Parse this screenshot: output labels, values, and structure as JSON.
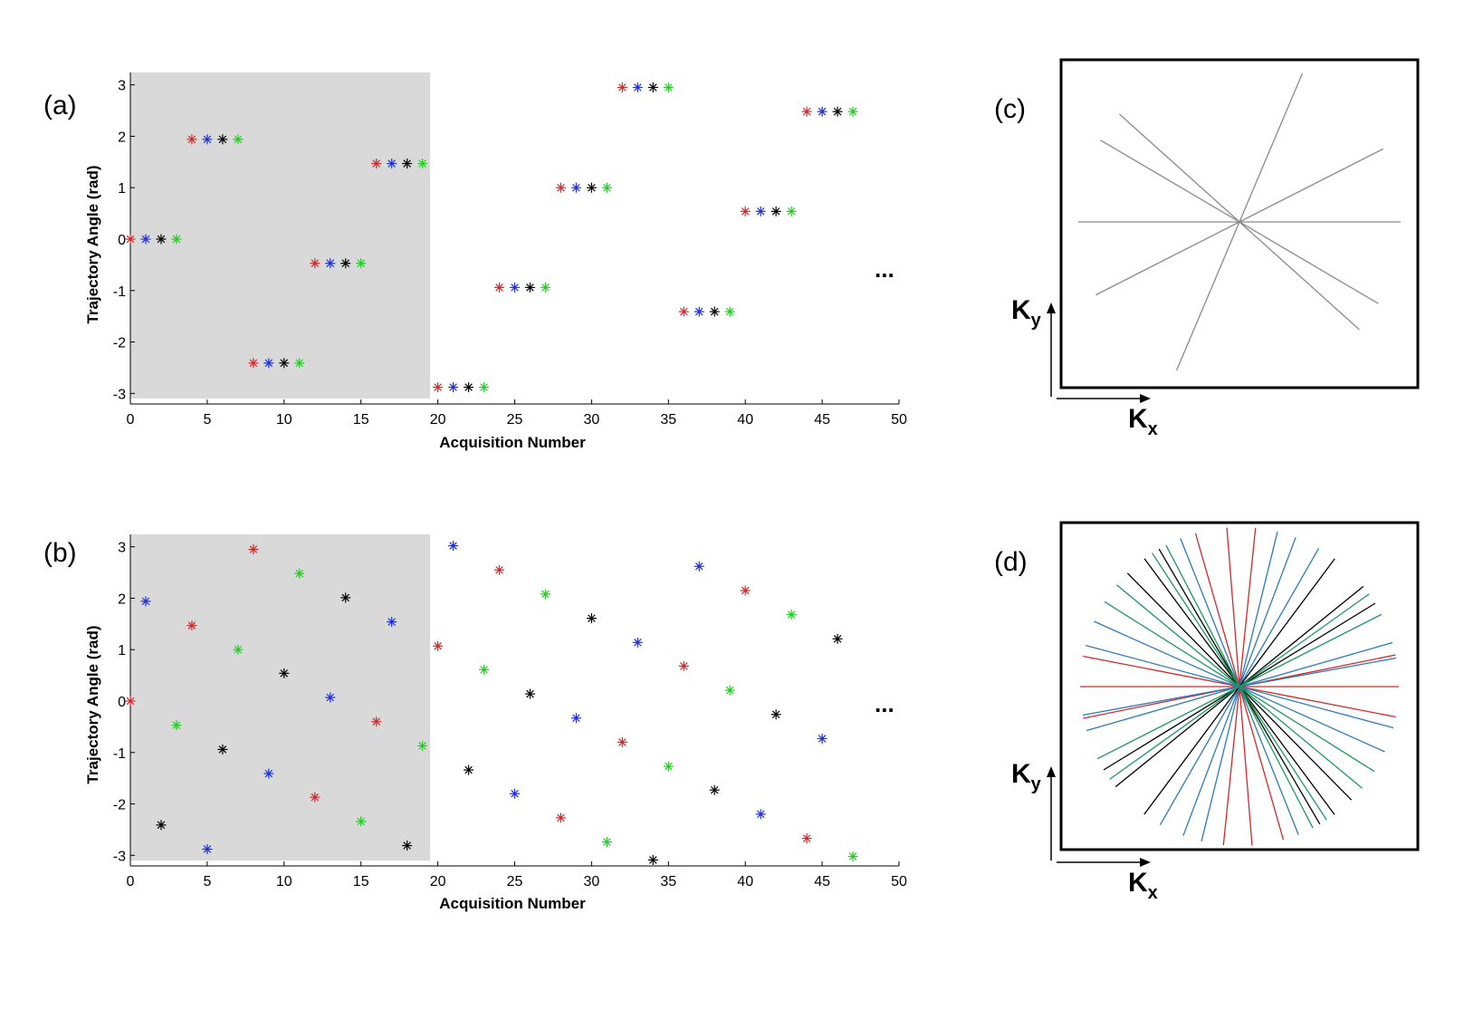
{
  "colors": {
    "red": "#d62728",
    "blue": "#1f2fd8",
    "black": "#000000",
    "green": "#22cc22",
    "shade": "#d9d9d9",
    "teal": "#2b7bba",
    "dgreen": "#1a9a5a",
    "gray": "#8a8a8a"
  },
  "chart_data": [
    {
      "type": "scatter",
      "panel": "(a)",
      "xlabel": "Acquisition Number",
      "ylabel": "Trajectory Angle (rad)",
      "xlim": [
        0,
        50
      ],
      "ylim": [
        -3.1,
        3.1
      ],
      "xticks": [
        0,
        5,
        10,
        15,
        20,
        25,
        30,
        35,
        40,
        45,
        50
      ],
      "yticks": [
        3,
        2,
        1,
        0,
        -1,
        -2,
        -3
      ],
      "shaded_region_x": [
        0,
        19.5
      ],
      "annotation": "...",
      "marker": "asterisk",
      "color_cycle": [
        "red",
        "blue",
        "black",
        "green"
      ],
      "points": [
        [
          0,
          0
        ],
        [
          1,
          0
        ],
        [
          2,
          0
        ],
        [
          3,
          0
        ],
        [
          4,
          1.94
        ],
        [
          5,
          1.94
        ],
        [
          6,
          1.94
        ],
        [
          7,
          1.94
        ],
        [
          8,
          -2.41
        ],
        [
          9,
          -2.41
        ],
        [
          10,
          -2.41
        ],
        [
          11,
          -2.41
        ],
        [
          12,
          -0.47
        ],
        [
          13,
          -0.47
        ],
        [
          14,
          -0.47
        ],
        [
          15,
          -0.47
        ],
        [
          16,
          1.47
        ],
        [
          17,
          1.47
        ],
        [
          18,
          1.47
        ],
        [
          19,
          1.47
        ],
        [
          20,
          -2.88
        ],
        [
          21,
          -2.88
        ],
        [
          22,
          -2.88
        ],
        [
          23,
          -2.88
        ],
        [
          24,
          -0.94
        ],
        [
          25,
          -0.94
        ],
        [
          26,
          -0.94
        ],
        [
          27,
          -0.94
        ],
        [
          28,
          1.0
        ],
        [
          29,
          1.0
        ],
        [
          30,
          1.0
        ],
        [
          31,
          1.0
        ],
        [
          32,
          2.95
        ],
        [
          33,
          2.95
        ],
        [
          34,
          2.95
        ],
        [
          35,
          2.95
        ],
        [
          36,
          -1.41
        ],
        [
          37,
          -1.41
        ],
        [
          38,
          -1.41
        ],
        [
          39,
          -1.41
        ],
        [
          40,
          0.54
        ],
        [
          41,
          0.54
        ],
        [
          42,
          0.54
        ],
        [
          43,
          0.54
        ],
        [
          44,
          2.48
        ],
        [
          45,
          2.48
        ],
        [
          46,
          2.48
        ],
        [
          47,
          2.48
        ]
      ]
    },
    {
      "type": "scatter",
      "panel": "(b)",
      "xlabel": "Acquisition Number",
      "ylabel": "Trajectory Angle (rad)",
      "xlim": [
        0,
        50
      ],
      "ylim": [
        -3.1,
        3.1
      ],
      "xticks": [
        0,
        5,
        10,
        15,
        20,
        25,
        30,
        35,
        40,
        45,
        50
      ],
      "yticks": [
        3,
        2,
        1,
        0,
        -1,
        -2,
        -3
      ],
      "shaded_region_x": [
        0,
        19.5
      ],
      "annotation": "...",
      "marker": "asterisk",
      "color_cycle": [
        "red",
        "blue",
        "black",
        "green"
      ],
      "points": [
        [
          0,
          0
        ],
        [
          1,
          1.94
        ],
        [
          2,
          -2.41
        ],
        [
          3,
          -0.47
        ],
        [
          4,
          1.47
        ],
        [
          5,
          -2.88
        ],
        [
          6,
          -0.94
        ],
        [
          7,
          1.0
        ],
        [
          8,
          2.95
        ],
        [
          9,
          -1.41
        ],
        [
          10,
          0.54
        ],
        [
          11,
          2.48
        ],
        [
          12,
          -1.87
        ],
        [
          13,
          0.07
        ],
        [
          14,
          2.01
        ],
        [
          15,
          -2.34
        ],
        [
          16,
          -0.4
        ],
        [
          17,
          1.54
        ],
        [
          18,
          -2.81
        ],
        [
          19,
          -0.87
        ],
        [
          20,
          1.07
        ],
        [
          21,
          3.02
        ],
        [
          22,
          -1.34
        ],
        [
          23,
          0.61
        ],
        [
          24,
          2.55
        ],
        [
          25,
          -1.8
        ],
        [
          26,
          0.14
        ],
        [
          27,
          2.08
        ],
        [
          28,
          -2.27
        ],
        [
          29,
          -0.33
        ],
        [
          30,
          1.61
        ],
        [
          31,
          -2.74
        ],
        [
          32,
          -0.8
        ],
        [
          33,
          1.14
        ],
        [
          34,
          -3.09
        ],
        [
          35,
          -1.27
        ],
        [
          36,
          0.68
        ],
        [
          37,
          2.62
        ],
        [
          38,
          -1.73
        ],
        [
          39,
          0.21
        ],
        [
          40,
          2.15
        ],
        [
          41,
          -2.2
        ],
        [
          42,
          -0.26
        ],
        [
          43,
          1.68
        ],
        [
          44,
          -2.67
        ],
        [
          45,
          -0.73
        ],
        [
          46,
          1.21
        ],
        [
          47,
          -3.02
        ]
      ]
    },
    {
      "type": "diagram",
      "panel": "(c)",
      "xlabel": "K",
      "xlabel_sub": "x",
      "ylabel": "K",
      "ylabel_sub": "y",
      "line_angles_rad": [
        0,
        0.47,
        1.17,
        2.41,
        2.61
      ],
      "line_color": "gray"
    },
    {
      "type": "diagram",
      "panel": "(d)",
      "xlabel": "K",
      "xlabel_sub": "x",
      "ylabel": "K",
      "ylabel_sub": "y",
      "groups": [
        {
          "color": "red",
          "angles_rad": [
            0,
            0.2,
            1.47,
            1.65,
            1.85,
            2.95
          ]
        },
        {
          "color": "teal",
          "angles_rad": [
            0.28,
            0.18,
            1.05,
            1.21,
            1.33,
            2.88,
            2.72,
            1.95
          ]
        },
        {
          "color": "black",
          "angles_rad": [
            0.55,
            0.68,
            0.93,
            2.21,
            2.35,
            2.1
          ]
        },
        {
          "color": "dgreen",
          "angles_rad": [
            0.47,
            0.62,
            2.05,
            2.15,
            2.45,
            2.58
          ]
        }
      ]
    }
  ]
}
